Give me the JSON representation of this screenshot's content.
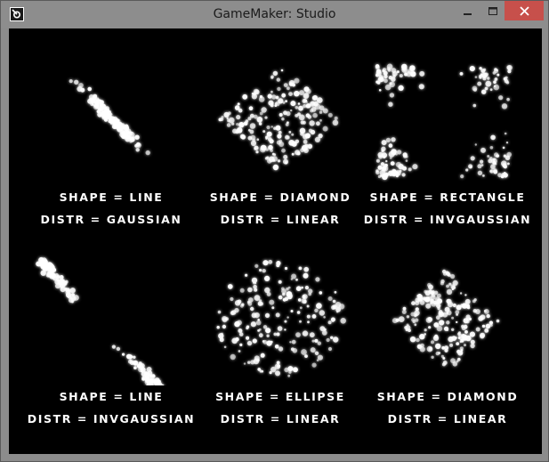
{
  "window": {
    "title": "GameMaker: Studio"
  },
  "icons": {
    "app": "gamemaker-icon",
    "minimize": "minimize-icon",
    "maximize": "maximize-icon",
    "close": "close-icon"
  },
  "colors": {
    "close_button": "#c7504b",
    "canvas": "#000000",
    "particle": "#ffffff"
  },
  "demos": [
    {
      "shape_text": "SHAPE = LINE",
      "distr_text": "DISTR = GAUSSIAN",
      "shape": "line",
      "distr": "gaussian"
    },
    {
      "shape_text": "SHAPE = DIAMOND",
      "distr_text": "DISTR = LINEAR",
      "shape": "diamond",
      "distr": "linear"
    },
    {
      "shape_text": "SHAPE = RECTANGLE",
      "distr_text": "DISTR = INVGAUSSIAN",
      "shape": "rectangle",
      "distr": "invgaussian"
    },
    {
      "shape_text": "SHAPE = LINE",
      "distr_text": "DISTR = INVGAUSSIAN",
      "shape": "line",
      "distr": "invgaussian"
    },
    {
      "shape_text": "SHAPE = ELLIPSE",
      "distr_text": "DISTR = LINEAR",
      "shape": "ellipse",
      "distr": "linear"
    },
    {
      "shape_text": "SHAPE = DIAMOND",
      "distr_text": "DISTR = LINEAR",
      "shape": "diamond",
      "distr": "linear"
    }
  ]
}
